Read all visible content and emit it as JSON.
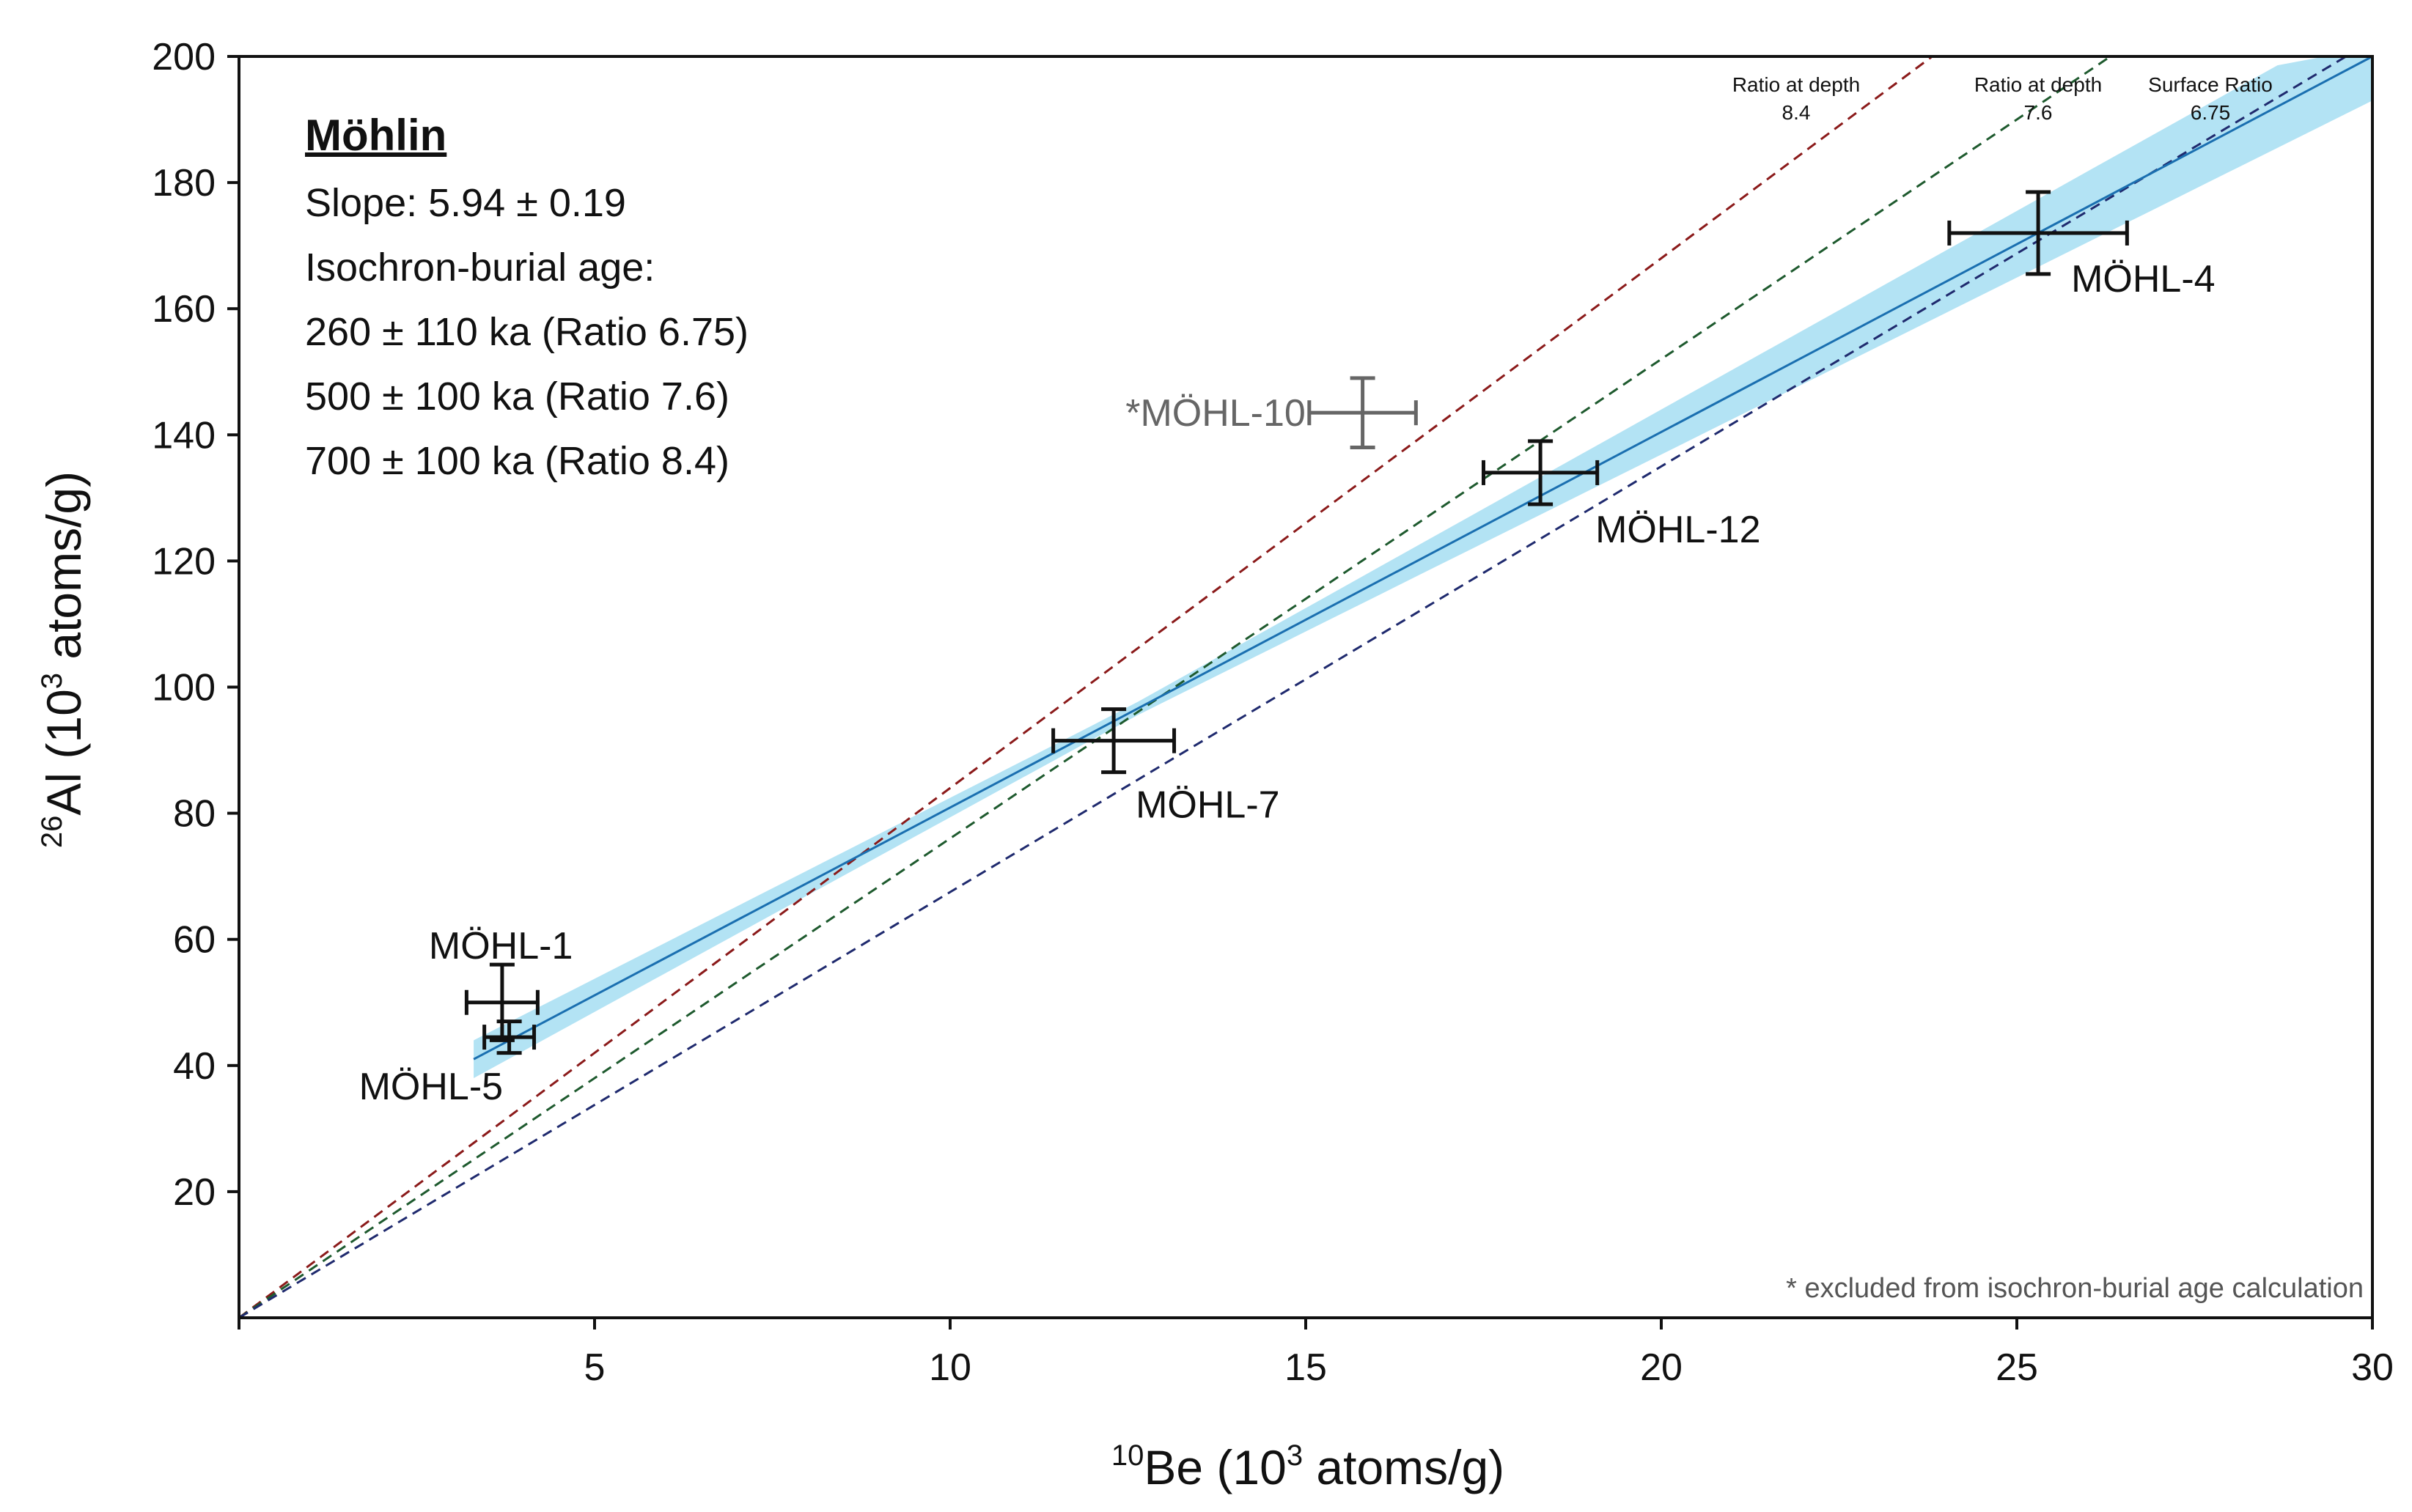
{
  "chart_data": {
    "type": "scatter",
    "xlabel_sup": "10",
    "xlabel_main": "Be (10",
    "xlabel_exp": "3",
    "xlabel_tail": " atoms/g)",
    "ylabel_sup": "26",
    "ylabel_main": "Al (10",
    "ylabel_exp": "3",
    "ylabel_tail": " atoms/g)",
    "xlim": [
      0,
      30
    ],
    "ylim": [
      0,
      200
    ],
    "x_ticks": [
      5,
      10,
      15,
      20,
      25,
      30
    ],
    "x_tick_labels": [
      "5",
      "10",
      "15",
      "20",
      "25",
      "30"
    ],
    "y_ticks": [
      20,
      40,
      60,
      80,
      100,
      120,
      140,
      160,
      180,
      200
    ],
    "y_tick_labels": [
      "20",
      "40",
      "60",
      "80",
      "100",
      "120",
      "140",
      "160",
      "180",
      "200"
    ],
    "grid": false,
    "info": {
      "title": "Möhlin",
      "lines": [
        "Slope: 5.94 ± 0.19",
        "Isochron-burial age:",
        "260 ± 110 ka (Ratio 6.75)",
        "500 ± 100 ka (Ratio 7.6)",
        "700 ± 100 ka (Ratio 8.4)"
      ]
    },
    "points": [
      {
        "label": "MÖHL-1",
        "x": 3.7,
        "y": 50,
        "xerr": 0.5,
        "yerr": 6,
        "excluded": false
      },
      {
        "label": "MÖHL-5",
        "x": 3.8,
        "y": 44.5,
        "xerr": 0.35,
        "yerr": 2.5,
        "excluded": false
      },
      {
        "label": "MÖHL-7",
        "x": 12.3,
        "y": 91.5,
        "xerr": 0.85,
        "yerr": 5,
        "excluded": false
      },
      {
        "label": "MÖHL-12",
        "x": 18.3,
        "y": 134,
        "xerr": 0.8,
        "yerr": 5,
        "excluded": false
      },
      {
        "label": "MÖHL-4",
        "x": 25.3,
        "y": 172,
        "xerr": 1.25,
        "yerr": 6.5,
        "excluded": false
      },
      {
        "label": "*MÖHL-10",
        "x": 15.8,
        "y": 143.5,
        "xerr": 0.75,
        "yerr": 5.5,
        "excluded": true
      }
    ],
    "fit": {
      "x_range": [
        3.3,
        30
      ],
      "y_at_start": 41,
      "y_at_end": 200,
      "band_half_width_start": 3,
      "band_half_width_min": 1,
      "band_half_width_end": 7,
      "band_pivot_x": 12.5
    },
    "reference_lines": [
      {
        "name": "Ratio at depth",
        "ratio_label": "8.4",
        "slope": 8.4,
        "color": "#8b1a1a"
      },
      {
        "name": "Ratio at depth",
        "ratio_label": "7.6",
        "slope": 7.6,
        "color": "#1e5a2e"
      },
      {
        "name": "Surface Ratio",
        "ratio_label": "6.75",
        "slope": 6.75,
        "color": "#1f2a6e"
      }
    ],
    "footnote": "* excluded from isochron-burial age calculation",
    "colors": {
      "axis": "#111111",
      "fit_line": "#1a6fb0",
      "band": "#b3e3f4",
      "point": "#111111",
      "excluded_point": "#666666"
    }
  }
}
